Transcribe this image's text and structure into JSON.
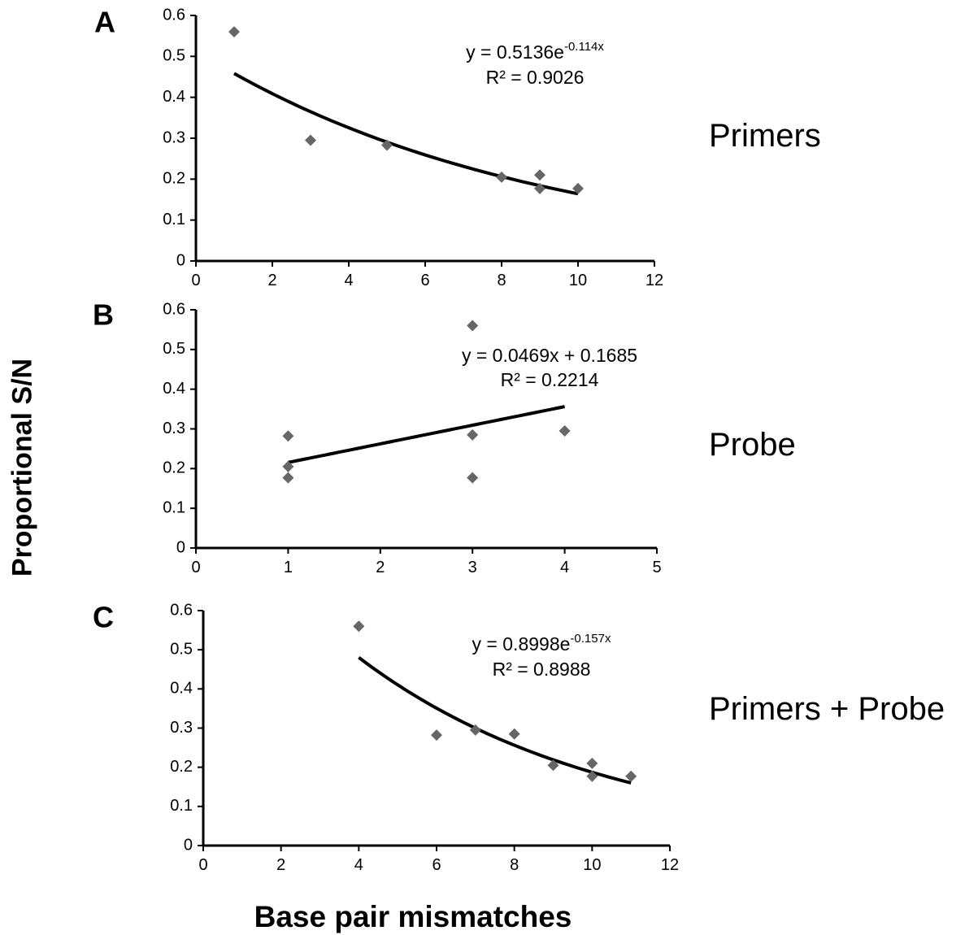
{
  "figure": {
    "ylabel": "Proportional S/N",
    "xlabel": "Base pair mismatches"
  },
  "chart_data": [
    {
      "type": "scatter",
      "panel": "A",
      "side_label": "Primers",
      "xlim": [
        0,
        12
      ],
      "ylim": [
        0,
        0.6
      ],
      "xticks": [
        "0",
        "2",
        "4",
        "6",
        "8",
        "10",
        "12"
      ],
      "yticks": [
        "0",
        "0.1",
        "0.2",
        "0.3",
        "0.4",
        "0.5",
        "0.6"
      ],
      "marker_color": "#666666",
      "points": [
        {
          "x": 1,
          "y": 0.56
        },
        {
          "x": 3,
          "y": 0.295
        },
        {
          "x": 5,
          "y": 0.283
        },
        {
          "x": 8,
          "y": 0.205
        },
        {
          "x": 9,
          "y": 0.21
        },
        {
          "x": 9,
          "y": 0.177
        },
        {
          "x": 10,
          "y": 0.177
        }
      ],
      "trendline": {
        "kind": "exponential",
        "a": 0.5136,
        "b": -0.114,
        "x_range": [
          1,
          10
        ]
      },
      "equation": {
        "base": "y = 0.5136e",
        "exponent": "-0.114x",
        "r2": "R² = 0.9026"
      }
    },
    {
      "type": "scatter",
      "panel": "B",
      "side_label": "Probe",
      "xlim": [
        0,
        5
      ],
      "ylim": [
        0,
        0.6
      ],
      "xticks": [
        "0",
        "1",
        "2",
        "3",
        "4",
        "5"
      ],
      "yticks": [
        "0",
        "0.1",
        "0.2",
        "0.3",
        "0.4",
        "0.5",
        "0.6"
      ],
      "marker_color": "#666666",
      "points": [
        {
          "x": 1,
          "y": 0.282
        },
        {
          "x": 1,
          "y": 0.205
        },
        {
          "x": 1,
          "y": 0.177
        },
        {
          "x": 3,
          "y": 0.56
        },
        {
          "x": 3,
          "y": 0.285
        },
        {
          "x": 3,
          "y": 0.177
        },
        {
          "x": 4,
          "y": 0.295
        }
      ],
      "trendline": {
        "kind": "linear",
        "m": 0.0469,
        "c": 0.1685,
        "x_range": [
          1,
          4
        ]
      },
      "equation": {
        "base": "y = 0.0469x + 0.1685",
        "exponent": "",
        "r2": "R² = 0.2214"
      }
    },
    {
      "type": "scatter",
      "panel": "C",
      "side_label": "Primers + Probe",
      "xlim": [
        0,
        12
      ],
      "ylim": [
        0,
        0.6
      ],
      "xticks": [
        "0",
        "2",
        "4",
        "6",
        "8",
        "10",
        "12"
      ],
      "yticks": [
        "0",
        "0.1",
        "0.2",
        "0.3",
        "0.4",
        "0.5",
        "0.6"
      ],
      "marker_color": "#666666",
      "points": [
        {
          "x": 4,
          "y": 0.56
        },
        {
          "x": 6,
          "y": 0.282
        },
        {
          "x": 7,
          "y": 0.295
        },
        {
          "x": 8,
          "y": 0.285
        },
        {
          "x": 9,
          "y": 0.205
        },
        {
          "x": 10,
          "y": 0.21
        },
        {
          "x": 10,
          "y": 0.177
        },
        {
          "x": 11,
          "y": 0.177
        }
      ],
      "trendline": {
        "kind": "exponential",
        "a": 0.8998,
        "b": -0.157,
        "x_range": [
          4,
          11
        ]
      },
      "equation": {
        "base": "y = 0.8998e",
        "exponent": "-0.157x",
        "r2": "R² = 0.8988"
      }
    }
  ]
}
